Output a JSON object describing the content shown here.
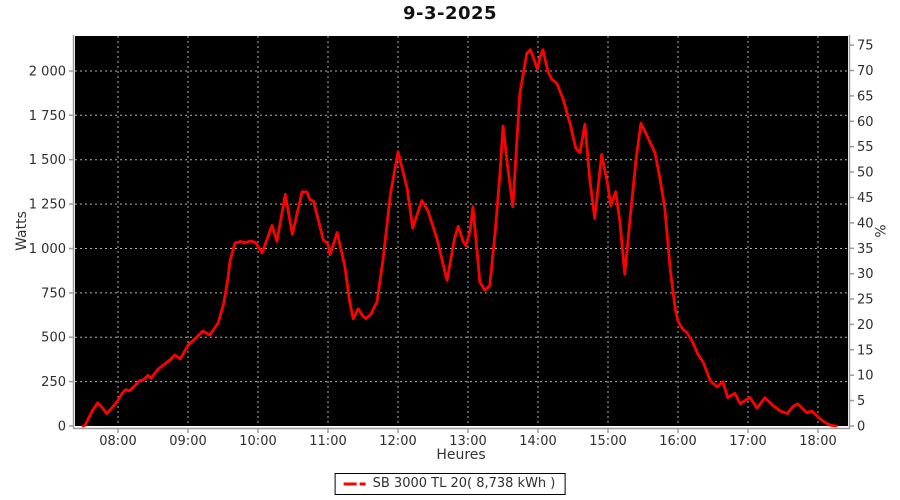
{
  "title": "9-3-2025",
  "axes": {
    "left_title": "Watts",
    "right_title": "%",
    "bottom_title": "Heures"
  },
  "legend": {
    "label": "SB 3000 TL 20( 8,738 kWh )"
  },
  "colors": {
    "page_bg": "#ffffff",
    "plot_bg": "#000000",
    "line": "#ff0000",
    "grid": "#b0b0b0",
    "axis_line": "#9b9b9b",
    "tick_label": "#2e2e2e"
  },
  "chart_data": {
    "type": "line",
    "title": "9-3-2025",
    "xlabel": "Heures",
    "ylabel_left": "Watts",
    "ylabel_right": "%",
    "grid": true,
    "legend_position": "bottom-center",
    "xlim_hours": [
      7.386,
      18.429
    ],
    "ylim_left": [
      0,
      2197
    ],
    "ylim_right": [
      0,
      76.8
    ],
    "x_tick_hours": [
      8,
      9,
      10,
      11,
      12,
      13,
      14,
      15,
      16,
      17,
      18
    ],
    "x_tick_labels": [
      "08:00",
      "09:00",
      "10:00",
      "11:00",
      "12:00",
      "13:00",
      "14:00",
      "15:00",
      "16:00",
      "17:00",
      "18:00"
    ],
    "left_ticks": [
      0,
      250,
      500,
      750,
      1000,
      1250,
      1500,
      1750,
      2000
    ],
    "left_tick_labels": [
      "0",
      "250",
      "500",
      "750",
      "1 000",
      "1 250",
      "1 500",
      "1 750",
      "2 000"
    ],
    "right_ticks": [
      0,
      5,
      10,
      15,
      20,
      25,
      30,
      35,
      40,
      45,
      50,
      55,
      60,
      65,
      70,
      75
    ],
    "right_tick_labels": [
      "0",
      "5",
      "10",
      "15",
      "20",
      "25",
      "30",
      "35",
      "40",
      "45",
      "50",
      "55",
      "60",
      "65",
      "70",
      "75"
    ],
    "series": [
      {
        "name": "SB 3000 TL 20( 8,738 kWh )",
        "color": "#ff0000",
        "units": "Watts",
        "points": [
          [
            7.5,
            0
          ],
          [
            7.53,
            5
          ],
          [
            7.6,
            60
          ],
          [
            7.64,
            90
          ],
          [
            7.71,
            130
          ],
          [
            7.78,
            100
          ],
          [
            7.84,
            70
          ],
          [
            7.93,
            110
          ],
          [
            8.0,
            145
          ],
          [
            8.06,
            185
          ],
          [
            8.11,
            205
          ],
          [
            8.16,
            198
          ],
          [
            8.21,
            215
          ],
          [
            8.31,
            255
          ],
          [
            8.36,
            260
          ],
          [
            8.43,
            285
          ],
          [
            8.47,
            268
          ],
          [
            8.57,
            320
          ],
          [
            8.67,
            350
          ],
          [
            8.74,
            372
          ],
          [
            8.81,
            400
          ],
          [
            8.89,
            378
          ],
          [
            9.0,
            455
          ],
          [
            9.11,
            495
          ],
          [
            9.21,
            535
          ],
          [
            9.31,
            512
          ],
          [
            9.43,
            580
          ],
          [
            9.51,
            690
          ],
          [
            9.57,
            830
          ],
          [
            9.6,
            930
          ],
          [
            9.67,
            1030
          ],
          [
            9.75,
            1040
          ],
          [
            9.81,
            1032
          ],
          [
            9.89,
            1042
          ],
          [
            9.96,
            1035
          ],
          [
            10.06,
            975
          ],
          [
            10.2,
            1130
          ],
          [
            10.27,
            1040
          ],
          [
            10.39,
            1305
          ],
          [
            10.49,
            1080
          ],
          [
            10.63,
            1320
          ],
          [
            10.7,
            1318
          ],
          [
            10.74,
            1275
          ],
          [
            10.79,
            1268
          ],
          [
            10.86,
            1165
          ],
          [
            10.93,
            1050
          ],
          [
            11.0,
            1025
          ],
          [
            11.03,
            965
          ],
          [
            11.13,
            1090
          ],
          [
            11.24,
            900
          ],
          [
            11.31,
            700
          ],
          [
            11.36,
            605
          ],
          [
            11.43,
            660
          ],
          [
            11.5,
            618
          ],
          [
            11.54,
            605
          ],
          [
            11.61,
            628
          ],
          [
            11.7,
            700
          ],
          [
            11.79,
            950
          ],
          [
            11.89,
            1300
          ],
          [
            12.0,
            1545
          ],
          [
            12.13,
            1340
          ],
          [
            12.21,
            1115
          ],
          [
            12.34,
            1270
          ],
          [
            12.43,
            1210
          ],
          [
            12.56,
            1050
          ],
          [
            12.7,
            820
          ],
          [
            12.81,
            1060
          ],
          [
            12.86,
            1125
          ],
          [
            12.93,
            1040
          ],
          [
            12.97,
            1015
          ],
          [
            13.03,
            1100
          ],
          [
            13.07,
            1235
          ],
          [
            13.17,
            810
          ],
          [
            13.24,
            765
          ],
          [
            13.31,
            790
          ],
          [
            13.39,
            1100
          ],
          [
            13.46,
            1440
          ],
          [
            13.5,
            1690
          ],
          [
            13.57,
            1450
          ],
          [
            13.64,
            1235
          ],
          [
            13.74,
            1870
          ],
          [
            13.84,
            2100
          ],
          [
            13.89,
            2120
          ],
          [
            13.93,
            2080
          ],
          [
            13.99,
            2010
          ],
          [
            14.03,
            2080
          ],
          [
            14.07,
            2120
          ],
          [
            14.14,
            2000
          ],
          [
            14.2,
            1950
          ],
          [
            14.27,
            1930
          ],
          [
            14.36,
            1840
          ],
          [
            14.46,
            1700
          ],
          [
            14.54,
            1565
          ],
          [
            14.6,
            1540
          ],
          [
            14.67,
            1700
          ],
          [
            14.74,
            1390
          ],
          [
            14.81,
            1170
          ],
          [
            14.91,
            1530
          ],
          [
            15.0,
            1350
          ],
          [
            15.04,
            1240
          ],
          [
            15.11,
            1320
          ],
          [
            15.17,
            1150
          ],
          [
            15.24,
            855
          ],
          [
            15.31,
            1150
          ],
          [
            15.4,
            1500
          ],
          [
            15.47,
            1705
          ],
          [
            15.54,
            1650
          ],
          [
            15.6,
            1598
          ],
          [
            15.67,
            1540
          ],
          [
            15.74,
            1400
          ],
          [
            15.81,
            1230
          ],
          [
            15.89,
            880
          ],
          [
            15.96,
            660
          ],
          [
            16.0,
            590
          ],
          [
            16.07,
            545
          ],
          [
            16.13,
            525
          ],
          [
            16.2,
            480
          ],
          [
            16.29,
            400
          ],
          [
            16.36,
            360
          ],
          [
            16.46,
            255
          ],
          [
            16.56,
            220
          ],
          [
            16.64,
            250
          ],
          [
            16.71,
            160
          ],
          [
            16.81,
            185
          ],
          [
            16.89,
            125
          ],
          [
            16.96,
            145
          ],
          [
            17.03,
            160
          ],
          [
            17.13,
            100
          ],
          [
            17.24,
            160
          ],
          [
            17.36,
            115
          ],
          [
            17.46,
            85
          ],
          [
            17.56,
            70
          ],
          [
            17.64,
            110
          ],
          [
            17.71,
            125
          ],
          [
            17.84,
            75
          ],
          [
            17.91,
            85
          ],
          [
            18.03,
            40
          ],
          [
            18.1,
            20
          ],
          [
            18.17,
            5
          ],
          [
            18.26,
            0
          ]
        ]
      }
    ]
  }
}
